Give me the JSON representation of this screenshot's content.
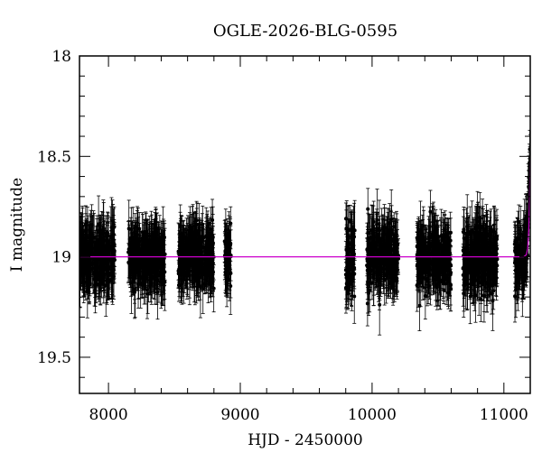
{
  "chart_data": {
    "type": "scatter",
    "title": "OGLE-2026-BLG-0595",
    "xlabel": "HJD - 2450000",
    "ylabel": "I magnitude",
    "xlim": [
      7780,
      11200
    ],
    "ylim": [
      19.68,
      18.0
    ],
    "y_inverted": true,
    "x_ticks": [
      8000,
      9000,
      10000,
      11000
    ],
    "x_tick_labels": [
      "8000",
      "9000",
      "10000",
      "11000"
    ],
    "y_ticks": [
      18,
      18.5,
      19,
      19.5
    ],
    "y_tick_labels": [
      "18",
      "18.5",
      "19",
      "19.5"
    ],
    "grid": false,
    "legend": "none",
    "colors": {
      "points": "#000000",
      "model": "#cc00cc",
      "frame": "#000000"
    },
    "series": [
      {
        "marker": "filled-circle-with-errorbars",
        "seasons": [
          {
            "x": [
              7780,
              8050
            ],
            "center_mag": 19.0,
            "scatter": 0.12,
            "error": 0.11
          },
          {
            "x": [
              8150,
              8430
            ],
            "center_mag": 19.0,
            "scatter": 0.12,
            "error": 0.11
          },
          {
            "x": [
              8530,
              8800
            ],
            "center_mag": 19.0,
            "scatter": 0.12,
            "error": 0.11
          },
          {
            "x": [
              8880,
              8930
            ],
            "center_mag": 19.0,
            "scatter": 0.12,
            "error": 0.11
          },
          {
            "x": [
              9800,
              9870
            ],
            "center_mag": 19.0,
            "scatter": 0.15,
            "error": 0.12
          },
          {
            "x": [
              9960,
              10200
            ],
            "center_mag": 19.0,
            "scatter": 0.13,
            "error": 0.11
          },
          {
            "x": [
              10340,
              10600
            ],
            "center_mag": 19.0,
            "scatter": 0.13,
            "error": 0.11
          },
          {
            "x": [
              10690,
              10950
            ],
            "center_mag": 19.0,
            "scatter": 0.14,
            "error": 0.12
          },
          {
            "x": [
              11080,
              11200
            ],
            "center_mag": 19.0,
            "scatter": 0.12,
            "error": 0.11
          }
        ],
        "rise": {
          "start_x": 11150,
          "end_x": 11200,
          "peak_mag": 18.4
        }
      },
      {
        "type": "line",
        "baseline_mag": 19.0,
        "x": [
          7780,
          11150,
          11170,
          11180,
          11190,
          11195,
          11200
        ],
        "y": [
          19.0,
          19.0,
          18.99,
          18.96,
          18.85,
          18.7,
          18.5
        ]
      }
    ]
  }
}
